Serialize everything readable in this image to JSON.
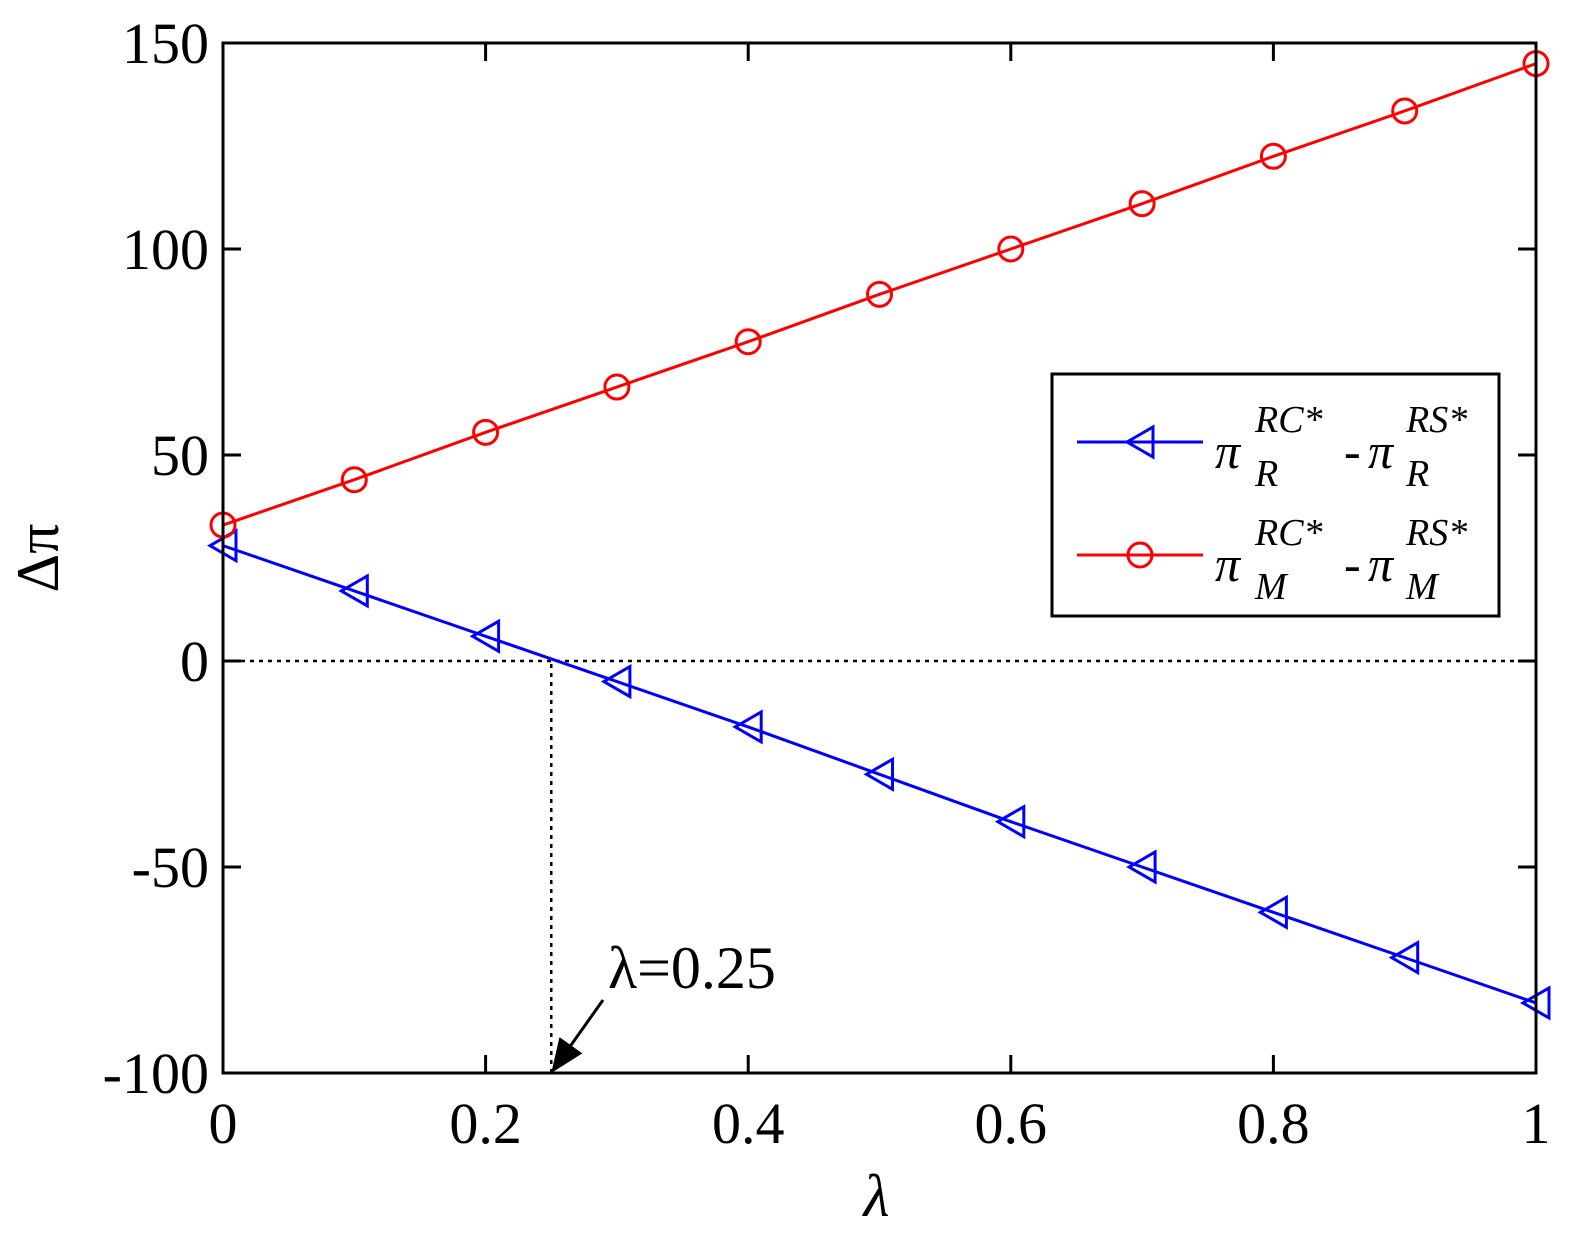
{
  "chart_data": {
    "type": "line",
    "xlabel": "λ",
    "ylabel": "Δπ",
    "xlim": [
      0,
      1
    ],
    "ylim": [
      -100,
      150
    ],
    "xticks": [
      0,
      0.2,
      0.4,
      0.6,
      0.8,
      1
    ],
    "xtick_labels": [
      "0",
      "0.2",
      "0.4",
      "0.6",
      "0.8",
      "1"
    ],
    "yticks": [
      -100,
      -50,
      0,
      50,
      100,
      150
    ],
    "ytick_labels": [
      "-100",
      "-50",
      "0",
      "50",
      "100",
      "150"
    ],
    "grid": false,
    "legend_position": "right",
    "x": [
      0,
      0.1,
      0.2,
      0.3,
      0.4,
      0.5,
      0.6,
      0.7,
      0.8,
      0.9,
      1.0
    ],
    "series": [
      {
        "name": "π_R^RC* - π_R^RS*",
        "name_parts": {
          "base1": "π",
          "sup1": "RC*",
          "sub1": "R",
          "sep": "-",
          "base2": "π",
          "sup2": "RS*",
          "sub2": "R"
        },
        "color": "#0000ff",
        "marker": "triangle-left",
        "values": [
          28,
          17,
          6,
          -5,
          -16,
          -27.5,
          -39,
          -50,
          -61,
          -72,
          -83
        ]
      },
      {
        "name": "π_M^RC* - π_M^RS*",
        "name_parts": {
          "base1": "π",
          "sup1": "RC*",
          "sub1": "M",
          "sep": "-",
          "base2": "π",
          "sup2": "RS*",
          "sub2": "M"
        },
        "color": "#ff0000",
        "marker": "circle",
        "values": [
          33,
          44,
          55.5,
          66.5,
          77.5,
          89,
          100,
          111,
          122.5,
          133.5,
          145
        ]
      }
    ],
    "reference_lines": [
      {
        "type": "horizontal",
        "y": 0,
        "style": "dotted"
      },
      {
        "type": "vertical",
        "x": 0.25,
        "y_from": -100,
        "y_to": 0,
        "style": "dotted"
      }
    ],
    "annotation": {
      "text": "λ=0.25",
      "x": 0.25,
      "y": -100
    }
  }
}
